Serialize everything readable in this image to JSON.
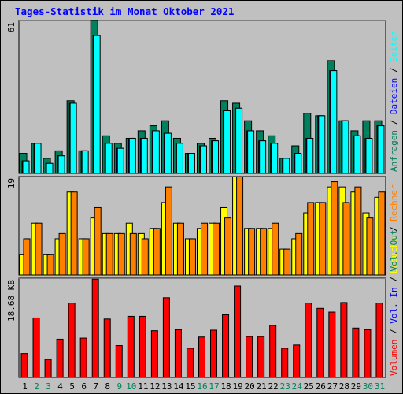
{
  "chart_data": {
    "type": "bar",
    "title": "Tages-Statistik im Monat Oktober 2021",
    "categories": [
      "1",
      "2",
      "3",
      "4",
      "5",
      "6",
      "7",
      "8",
      "9",
      "10",
      "11",
      "12",
      "13",
      "14",
      "15",
      "16",
      "17",
      "18",
      "19",
      "20",
      "21",
      "22",
      "23",
      "24",
      "25",
      "26",
      "27",
      "28",
      "29",
      "30",
      "31"
    ],
    "weekend_days": [
      "2",
      "3",
      "9",
      "10",
      "16",
      "17",
      "23",
      "24",
      "30",
      "31"
    ],
    "panels": [
      {
        "id": "top",
        "scale_label": "61",
        "ylim": [
          0,
          61
        ],
        "side_labels": [
          {
            "text": "Anfragen",
            "color": "#00805c"
          },
          {
            "text": " / ",
            "color": "#000000"
          },
          {
            "text": "Dateien",
            "color": "#0000ff"
          },
          {
            "text": " / ",
            "color": "#000000"
          },
          {
            "text": "Seiten",
            "color": "#00ffff"
          }
        ],
        "series": [
          {
            "name": "Anfragen",
            "color": "#00805c",
            "values": [
              8,
              12,
              6,
              9,
              29,
              9,
              61,
              15,
              12,
              14,
              17,
              19,
              21,
              14,
              8,
              12,
              14,
              29,
              28,
              21,
              17,
              15,
              6,
              11,
              24,
              23,
              45,
              21,
              17,
              21,
              21
            ]
          },
          {
            "name": "Dateien",
            "color": "#0000ff",
            "values": [
              5,
              12,
              4,
              7,
              28,
              9,
              55,
              12,
              10,
              14,
              14,
              17,
              16,
              12,
              8,
              11,
              13,
              25,
              26,
              17,
              13,
              12,
              6,
              8,
              14,
              23,
              41,
              21,
              15,
              14,
              19
            ]
          },
          {
            "name": "Seiten",
            "color": "#00ffff",
            "values": [
              5,
              12,
              4,
              7,
              28,
              9,
              55,
              12,
              10,
              14,
              14,
              17,
              16,
              12,
              8,
              11,
              13,
              25,
              26,
              17,
              13,
              12,
              6,
              8,
              14,
              23,
              41,
              21,
              15,
              14,
              19
            ]
          }
        ]
      },
      {
        "id": "middle",
        "scale_label": "19",
        "ylim": [
          0,
          19
        ],
        "side_labels": [
          {
            "text": "Besuche",
            "color": "#ffff00"
          },
          {
            "text": " / ",
            "color": "#000000"
          },
          {
            "text": "Rechner",
            "color": "#ff8000"
          }
        ],
        "series": [
          {
            "name": "Besuche",
            "color": "#ffff00",
            "values": [
              4,
              10,
              4,
              7,
              16,
              7,
              11,
              8,
              8,
              10,
              8,
              9,
              14,
              10,
              7,
              9,
              10,
              13,
              19,
              9,
              9,
              9,
              5,
              7,
              12,
              14,
              17,
              17,
              16,
              12,
              15
            ]
          },
          {
            "name": "Rechner",
            "color": "#ff8000",
            "values": [
              7,
              10,
              4,
              8,
              16,
              7,
              13,
              8,
              8,
              8,
              7,
              9,
              17,
              10,
              7,
              10,
              10,
              11,
              19,
              9,
              9,
              10,
              5,
              8,
              14,
              14,
              18,
              14,
              17,
              11,
              16
            ]
          }
        ]
      },
      {
        "id": "bottom",
        "scale_label": "18.68 KB",
        "ylim": [
          0,
          18.68
        ],
        "side_labels": [
          {
            "text": "Volumen",
            "color": "#ff0000"
          },
          {
            "text": " / ",
            "color": "#000000"
          },
          {
            "text": "Vol. In",
            "color": "#0000ff"
          },
          {
            "text": " / ",
            "color": "#000000"
          },
          {
            "text": "Vol. Out",
            "color": "#00805c"
          }
        ],
        "series": [
          {
            "name": "Volumen",
            "color": "#ff0000",
            "values": [
              4.5,
              11.2,
              3.4,
              7.2,
              14.0,
              7.4,
              18.5,
              11.0,
              6.0,
              11.5,
              11.5,
              8.8,
              15.0,
              9.0,
              5.5,
              7.6,
              8.9,
              11.8,
              17.2,
              7.7,
              7.7,
              9.8,
              5.5,
              6.1,
              14.0,
              13.0,
              12.3,
              14.1,
              9.3,
              9.0,
              14.0
            ]
          }
        ]
      }
    ]
  }
}
